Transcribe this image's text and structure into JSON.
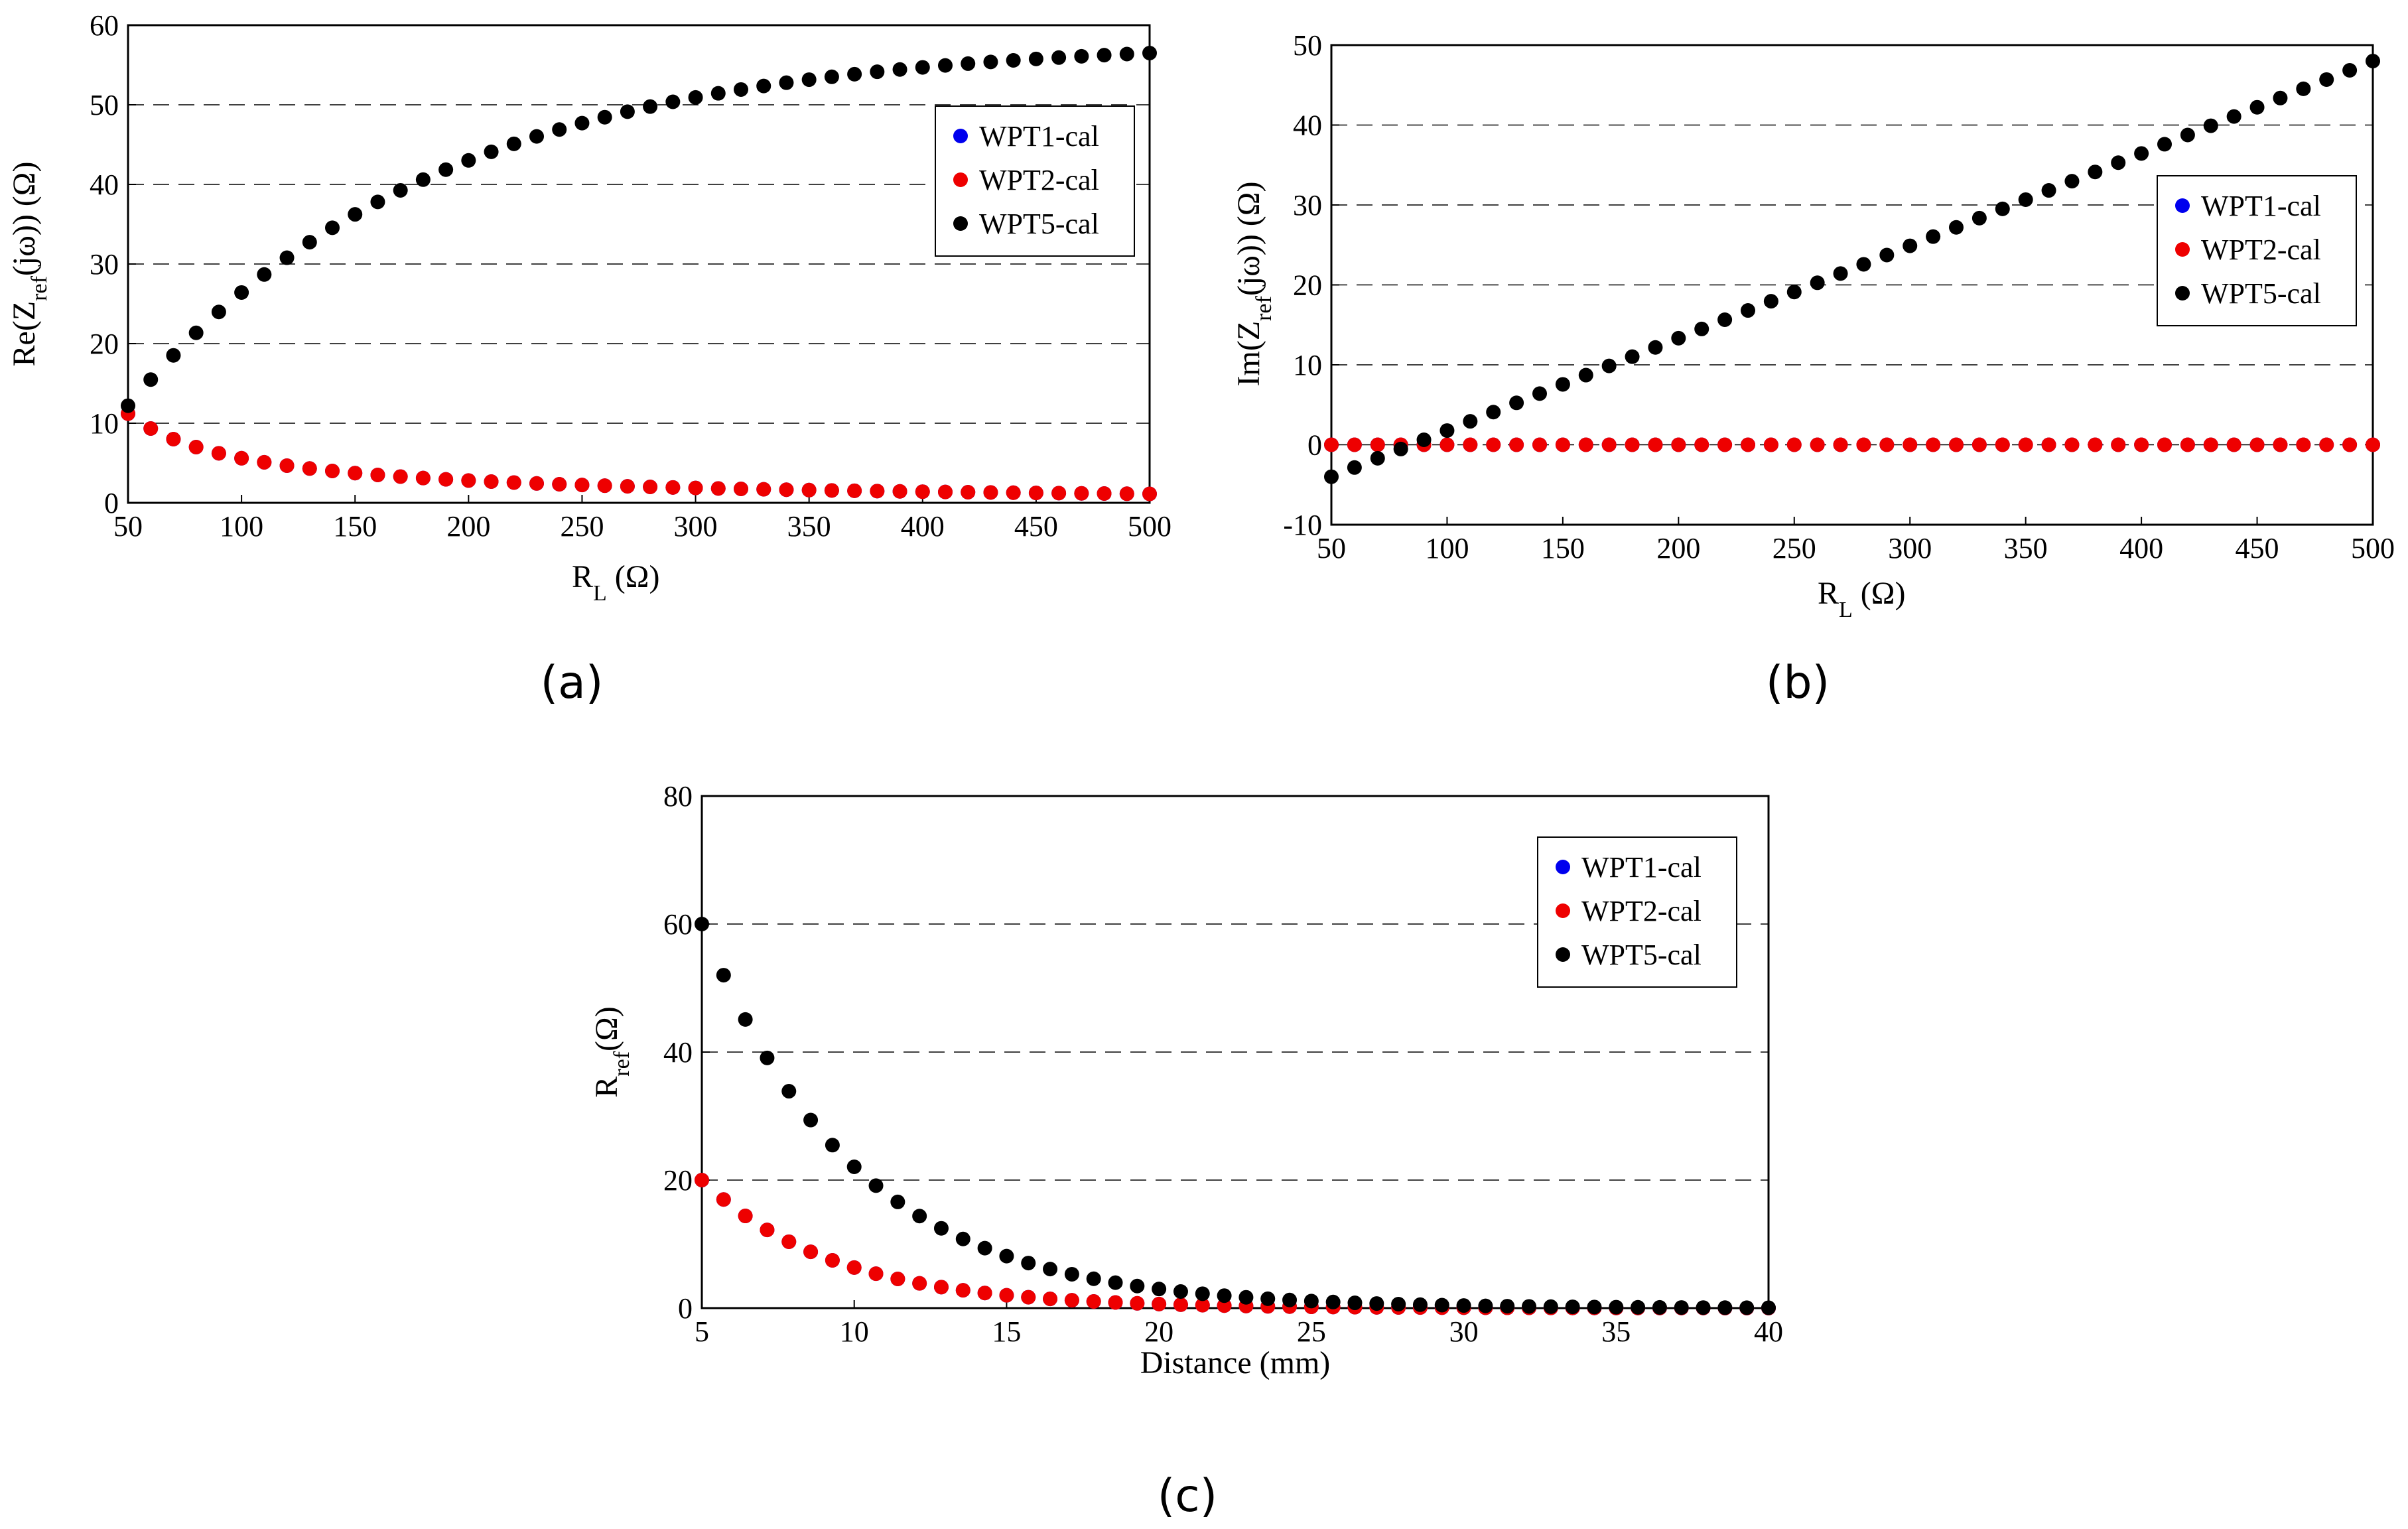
{
  "panels": [
    {
      "id": "a",
      "caption": "(a)",
      "xlabel": {
        "main": "R",
        "sub": "L",
        "rest": " (Ω)"
      },
      "ylabel": {
        "pre": "Re(Z",
        "sub": "ref",
        "post": "(jω)) (Ω)"
      }
    },
    {
      "id": "b",
      "caption": "(b)",
      "xlabel": {
        "main": "R",
        "sub": "L",
        "rest": " (Ω)"
      },
      "ylabel": {
        "pre": "Im(Z",
        "sub": "ref",
        "post": "(jω)) (Ω)"
      }
    },
    {
      "id": "c",
      "caption": "(c)",
      "xlabel": {
        "main": "Distance (mm)",
        "sub": "",
        "rest": ""
      },
      "ylabel": {
        "pre": "R",
        "sub": "ref",
        "post": "(Ω)"
      }
    }
  ],
  "legend": [
    "WPT1-cal",
    "WPT2-cal",
    "WPT5-cal"
  ],
  "colors": {
    "WPT1-cal": "#0000ee",
    "WPT2-cal": "#ee0000",
    "WPT5-cal": "#000000",
    "grid": "#000000"
  },
  "chart_data": [
    {
      "type": "scatter",
      "panel": "a",
      "xlabel": "R_L (Ω)",
      "ylabel": "Re(Z_ref(jω)) (Ω)",
      "xlim": [
        50,
        500
      ],
      "ylim": [
        0,
        60
      ],
      "xticks": [
        50,
        100,
        150,
        200,
        250,
        300,
        350,
        400,
        450,
        500
      ],
      "yticks": [
        0,
        10,
        20,
        30,
        40,
        50,
        60
      ],
      "grid": "horizontal dashed",
      "legend_position": "top-right",
      "series": [
        {
          "name": "WPT1-cal",
          "model": "reciprocal",
          "x_start": 50,
          "x_end": 500,
          "count": 46,
          "A": 560,
          "offset": 0,
          "note": "Re ≈ 560/R_L"
        },
        {
          "name": "WPT2-cal",
          "model": "reciprocal",
          "x_start": 50,
          "x_end": 500,
          "count": 46,
          "A": 560,
          "offset": 0,
          "note": "Re ≈ 560/R_L, overlaps WPT1"
        },
        {
          "name": "WPT5-cal",
          "model": "saturating",
          "x_start": 50,
          "x_end": 500,
          "count": 46,
          "note": "rises from 12.2 at 50 to 56.5 at 500"
        }
      ]
    },
    {
      "type": "scatter",
      "panel": "b",
      "xlabel": "R_L (Ω)",
      "ylabel": "Im(Z_ref(jω)) (Ω)",
      "xlim": [
        50,
        500
      ],
      "ylim": [
        -10,
        50
      ],
      "xticks": [
        50,
        100,
        150,
        200,
        250,
        300,
        350,
        400,
        450,
        500
      ],
      "yticks": [
        -10,
        0,
        10,
        20,
        30,
        40,
        50
      ],
      "grid": "horizontal dashed",
      "legend_position": "right",
      "series": [
        {
          "name": "WPT1-cal",
          "model": "constant",
          "x_start": 50,
          "x_end": 500,
          "count": 46,
          "value": 0
        },
        {
          "name": "WPT2-cal",
          "model": "constant",
          "x_start": 50,
          "x_end": 500,
          "count": 46,
          "value": 0
        },
        {
          "name": "WPT5-cal",
          "model": "linear",
          "x_start": 50,
          "x_end": 500,
          "count": 46,
          "y_start": -4,
          "y_end": 48
        }
      ]
    },
    {
      "type": "scatter",
      "panel": "c",
      "xlabel": "Distance (mm)",
      "ylabel": "R_ref (Ω)",
      "xlim": [
        5,
        40
      ],
      "ylim": [
        0,
        80
      ],
      "xticks": [
        5,
        10,
        15,
        20,
        25,
        30,
        35,
        40
      ],
      "yticks": [
        0,
        20,
        40,
        60,
        80
      ],
      "grid": "horizontal dashed",
      "legend_position": "top-right",
      "series": [
        {
          "name": "WPT1-cal",
          "model": "exponential",
          "x_start": 5,
          "x_end": 40,
          "count": 50,
          "y0": 20,
          "decay": 0.23
        },
        {
          "name": "WPT2-cal",
          "model": "exponential",
          "x_start": 5,
          "x_end": 40,
          "count": 50,
          "y0": 20,
          "decay": 0.23
        },
        {
          "name": "WPT5-cal",
          "model": "exponential",
          "x_start": 5,
          "x_end": 40,
          "count": 50,
          "y0": 60,
          "decay": 0.2
        }
      ]
    }
  ]
}
